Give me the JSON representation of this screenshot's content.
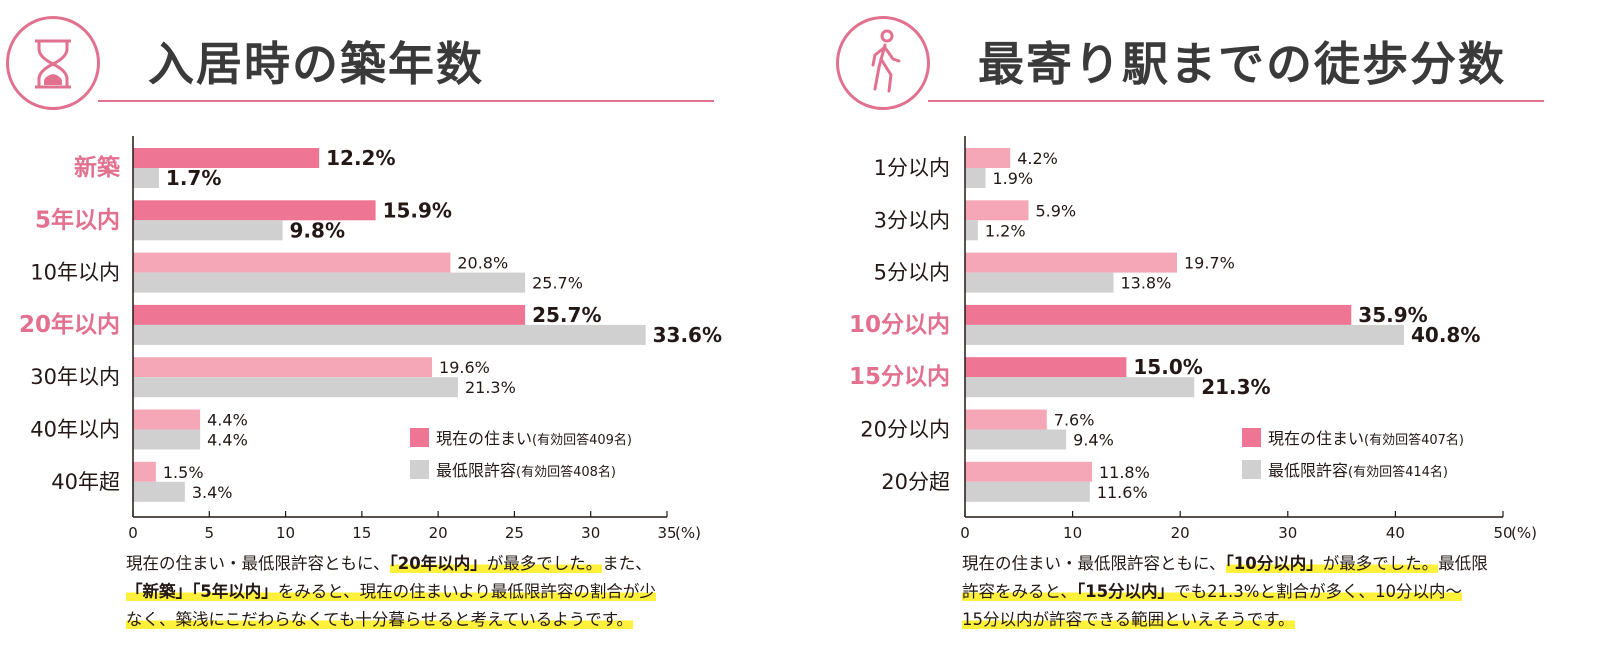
{
  "colors": {
    "accent": "#e2718f",
    "current_highlight": "#ee7593",
    "current": "#f5a7b8",
    "minimum": "#d0d0d0",
    "text": "#231815",
    "marker": "#fff13b"
  },
  "chart_data": [
    {
      "type": "bar",
      "orientation": "horizontal",
      "title": "入居時の築年数",
      "icon": "hourglass-icon",
      "categories": [
        "新築",
        "5年以内",
        "10年以内",
        "20年以内",
        "30年以内",
        "40年以内",
        "40年超"
      ],
      "highlighted_categories": [
        "新築",
        "5年以内",
        "20年以内"
      ],
      "series": [
        {
          "name": "現在の住まい",
          "note": "(有効回答409名)",
          "values": [
            12.2,
            15.9,
            20.8,
            25.7,
            19.6,
            4.4,
            1.5
          ]
        },
        {
          "name": "最低限許容",
          "note": "(有効回答408名)",
          "values": [
            1.7,
            9.8,
            25.7,
            33.6,
            21.3,
            4.4,
            3.4
          ]
        }
      ],
      "xlim": [
        0,
        35
      ],
      "xticks": [
        "0",
        "5",
        "10",
        "15",
        "20",
        "25",
        "30",
        "35"
      ],
      "unit_label": "(%)",
      "legend_position": "bottom-right",
      "note_lines": [
        [
          {
            "text": "現在の住まい・最低限許容ともに、",
            "hl": false,
            "bold": false
          },
          {
            "text": "「20年以内」",
            "hl": true,
            "bold": true
          },
          {
            "text": "が最多でした。",
            "hl": true,
            "bold": false
          },
          {
            "text": "また、",
            "hl": false,
            "bold": false
          }
        ],
        [
          {
            "text": "「新築」「5年以内」",
            "hl": true,
            "bold": true
          },
          {
            "text": "をみると、現在の住まいより最低限許容の割合が少",
            "hl": true,
            "bold": false
          }
        ],
        [
          {
            "text": "なく、築浅にこだわらなくても十分暮らせると考えているようです。",
            "hl": true,
            "bold": false
          }
        ]
      ]
    },
    {
      "type": "bar",
      "orientation": "horizontal",
      "title": "最寄り駅までの徒歩分数",
      "icon": "walking-person-icon",
      "categories": [
        "1分以内",
        "3分以内",
        "5分以内",
        "10分以内",
        "15分以内",
        "20分以内",
        "20分超"
      ],
      "highlighted_categories": [
        "10分以内",
        "15分以内"
      ],
      "series": [
        {
          "name": "現在の住まい",
          "note": "(有効回答407名)",
          "values": [
            4.2,
            5.9,
            19.7,
            35.9,
            15.0,
            7.6,
            11.8
          ]
        },
        {
          "name": "最低限許容",
          "note": "(有効回答414名)",
          "values": [
            1.9,
            1.2,
            13.8,
            40.8,
            21.3,
            9.4,
            11.6
          ]
        }
      ],
      "xlim": [
        0,
        50
      ],
      "xticks": [
        "0",
        "10",
        "20",
        "30",
        "40",
        "50"
      ],
      "unit_label": "(%)",
      "legend_position": "bottom-right",
      "note_lines": [
        [
          {
            "text": "現在の住まい・最低限許容ともに、",
            "hl": false,
            "bold": false
          },
          {
            "text": "「10分以内」",
            "hl": true,
            "bold": true
          },
          {
            "text": "が最多でした。",
            "hl": true,
            "bold": false
          },
          {
            "text": "最低限",
            "hl": false,
            "bold": false
          }
        ],
        [
          {
            "text": "許容をみると、",
            "hl": true,
            "bold": false
          },
          {
            "text": "「15分以内」",
            "hl": true,
            "bold": true
          },
          {
            "text": "でも21.3%と割合が多く、10分以内～",
            "hl": true,
            "bold": false
          }
        ],
        [
          {
            "text": "15分以内が許容できる範囲といえそうです。",
            "hl": true,
            "bold": false
          }
        ]
      ]
    }
  ]
}
